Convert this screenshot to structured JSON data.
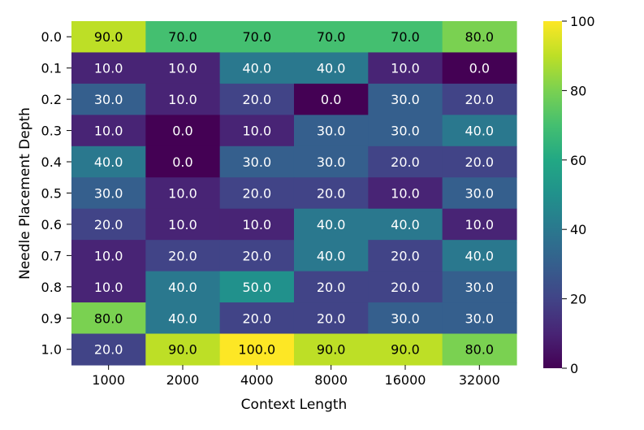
{
  "chart_data": {
    "type": "heatmap",
    "title": "",
    "xlabel": "Context Length",
    "ylabel": "Needle Placement Depth",
    "x_categories": [
      "1000",
      "2000",
      "4000",
      "8000",
      "16000",
      "32000"
    ],
    "y_categories": [
      "0.0",
      "0.1",
      "0.2",
      "0.3",
      "0.4",
      "0.5",
      "0.6",
      "0.7",
      "0.8",
      "0.9",
      "1.0"
    ],
    "values": [
      [
        90.0,
        70.0,
        70.0,
        70.0,
        70.0,
        80.0
      ],
      [
        10.0,
        10.0,
        40.0,
        40.0,
        10.0,
        0.0
      ],
      [
        30.0,
        10.0,
        20.0,
        0.0,
        30.0,
        20.0
      ],
      [
        10.0,
        0.0,
        10.0,
        30.0,
        30.0,
        40.0
      ],
      [
        40.0,
        0.0,
        30.0,
        30.0,
        20.0,
        20.0
      ],
      [
        30.0,
        10.0,
        20.0,
        20.0,
        10.0,
        30.0
      ],
      [
        20.0,
        10.0,
        10.0,
        40.0,
        40.0,
        10.0
      ],
      [
        10.0,
        20.0,
        20.0,
        40.0,
        20.0,
        40.0
      ],
      [
        10.0,
        40.0,
        50.0,
        20.0,
        20.0,
        30.0
      ],
      [
        80.0,
        40.0,
        20.0,
        20.0,
        30.0,
        30.0
      ],
      [
        20.0,
        90.0,
        100.0,
        90.0,
        90.0,
        80.0
      ]
    ],
    "value_format": "0.0",
    "colormap": "viridis",
    "vmin": 0,
    "vmax": 100,
    "colorbar_ticks": [
      "0",
      "20",
      "40",
      "60",
      "80",
      "100"
    ],
    "grid": false
  }
}
